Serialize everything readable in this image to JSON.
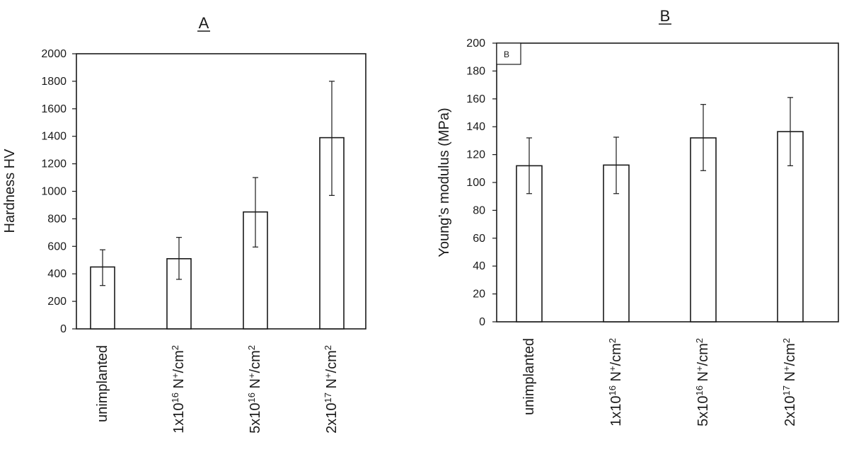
{
  "chart_data": [
    {
      "type": "bar",
      "title": "A",
      "xlabel": "",
      "ylabel": "Hardness HV",
      "ylim": [
        0,
        2000
      ],
      "yticks": [
        0,
        200,
        400,
        600,
        800,
        1000,
        1200,
        1400,
        1600,
        1800,
        2000
      ],
      "categories": [
        {
          "base": "unimplanted",
          "sup1": "",
          "mid": "",
          "sup2": ""
        },
        {
          "base": "1x10",
          "sup1": "16",
          "mid": " N",
          "sup2": "+",
          "tail": "/cm",
          "sup3": "2"
        },
        {
          "base": "5x10",
          "sup1": "16",
          "mid": " N",
          "sup2": "+",
          "tail": "/cm",
          "sup3": "2"
        },
        {
          "base": "2x10",
          "sup1": "17",
          "mid": " N",
          "sup2": "+",
          "tail": "/cm",
          "sup3": "2"
        }
      ],
      "values": [
        450,
        510,
        850,
        1390
      ],
      "error_low": [
        315,
        360,
        595,
        970
      ],
      "error_high": [
        575,
        665,
        1100,
        1800
      ],
      "grid": false,
      "frame": true
    },
    {
      "type": "bar",
      "title": "B",
      "inset_label": "B",
      "xlabel": "",
      "ylabel": "Young’s modulus (MPa)",
      "ylim": [
        0,
        200
      ],
      "yticks": [
        0,
        20,
        40,
        60,
        80,
        100,
        120,
        140,
        160,
        180,
        200
      ],
      "categories": [
        {
          "base": "unimplanted",
          "sup1": "",
          "mid": "",
          "sup2": ""
        },
        {
          "base": "1x10",
          "sup1": "16",
          "mid": " N",
          "sup2": "+",
          "tail": "/cm",
          "sup3": "2"
        },
        {
          "base": "5x10",
          "sup1": "16",
          "mid": " N",
          "sup2": "+",
          "tail": "/cm",
          "sup3": "2"
        },
        {
          "base": "2x10",
          "sup1": "17",
          "mid": " N",
          "sup2": "+",
          "tail": "/cm",
          "sup3": "2"
        }
      ],
      "values": [
        112,
        112.5,
        132,
        136.5
      ],
      "error_low": [
        92,
        92,
        108.5,
        112
      ],
      "error_high": [
        132,
        132.5,
        156,
        161
      ],
      "grid": false,
      "frame": true
    }
  ],
  "colors": {
    "ink": "#1a1a1a",
    "bar_fill": "#ffffff"
  }
}
